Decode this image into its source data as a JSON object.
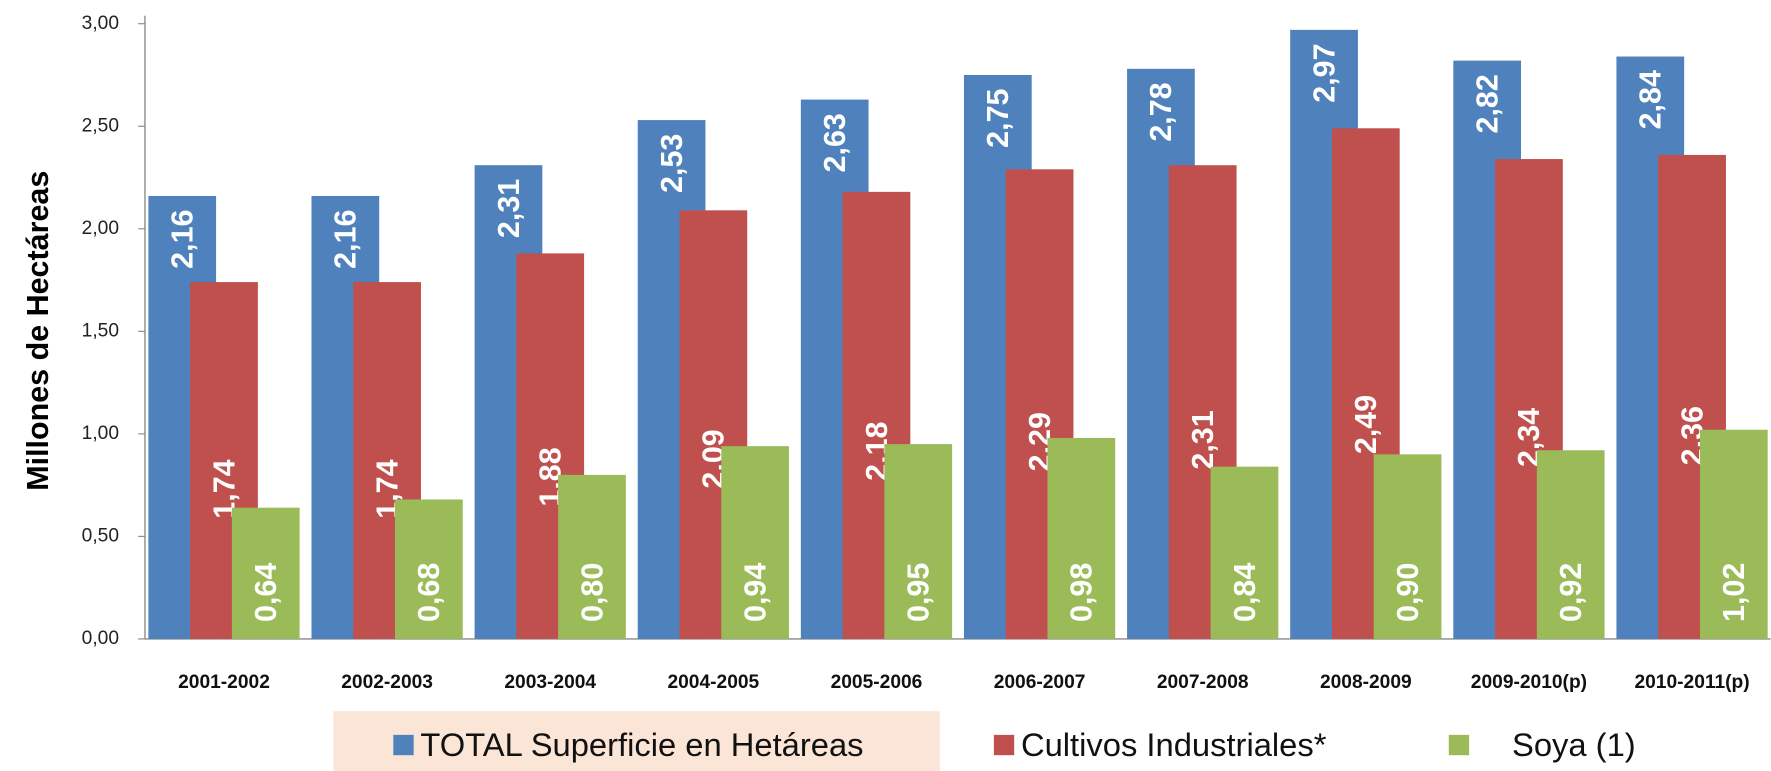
{
  "chart_data": {
    "type": "bar",
    "y_label": "Millones de Hectáreas",
    "categories": [
      "2001-2002",
      "2002-2003",
      "2003-2004",
      "2004-2005",
      "2005-2006",
      "2006-2007",
      "2007-2008",
      "2008-2009",
      "2009-2010(p)",
      "2010-2011(p)"
    ],
    "series": [
      {
        "name": "TOTAL Superficie en Hetáreas",
        "color": "#4f81bd",
        "values": [
          2.16,
          2.16,
          2.31,
          2.53,
          2.63,
          2.75,
          2.78,
          2.97,
          2.82,
          2.84
        ],
        "value_labels": [
          "2,16",
          "2,16",
          "2,31",
          "2,53",
          "2,63",
          "2,75",
          "2,78",
          "2,97",
          "2,82",
          "2,84"
        ]
      },
      {
        "name": "Cultivos Industriales*",
        "color": "#c0504d",
        "values": [
          1.74,
          1.74,
          1.88,
          2.09,
          2.18,
          2.29,
          2.31,
          2.49,
          2.34,
          2.36
        ],
        "value_labels": [
          "1,74",
          "1,74",
          "1,88",
          "2,09",
          "2,18",
          "2,29",
          "2,31",
          "2,49",
          "2,34",
          "2,36"
        ]
      },
      {
        "name": "Soya (1)",
        "color": "#9bbb59",
        "values": [
          0.64,
          0.68,
          0.8,
          0.94,
          0.95,
          0.98,
          0.84,
          0.9,
          0.92,
          1.02
        ],
        "value_labels": [
          "0,64",
          "0,68",
          "0,80",
          "0,94",
          "0,95",
          "0,98",
          "0,84",
          "0,90",
          "0,92",
          "1,02"
        ]
      }
    ],
    "ylim": [
      0,
      3
    ],
    "yticks": [
      {
        "value": 0,
        "label": "0,00"
      },
      {
        "value": 0.5,
        "label": "0,50"
      },
      {
        "value": 1,
        "label": "1,00"
      },
      {
        "value": 1.5,
        "label": "1,50"
      },
      {
        "value": 2,
        "label": "2,00"
      },
      {
        "value": 2.5,
        "label": "2,50"
      },
      {
        "value": 3,
        "label": "3,00"
      }
    ],
    "grid": false
  }
}
